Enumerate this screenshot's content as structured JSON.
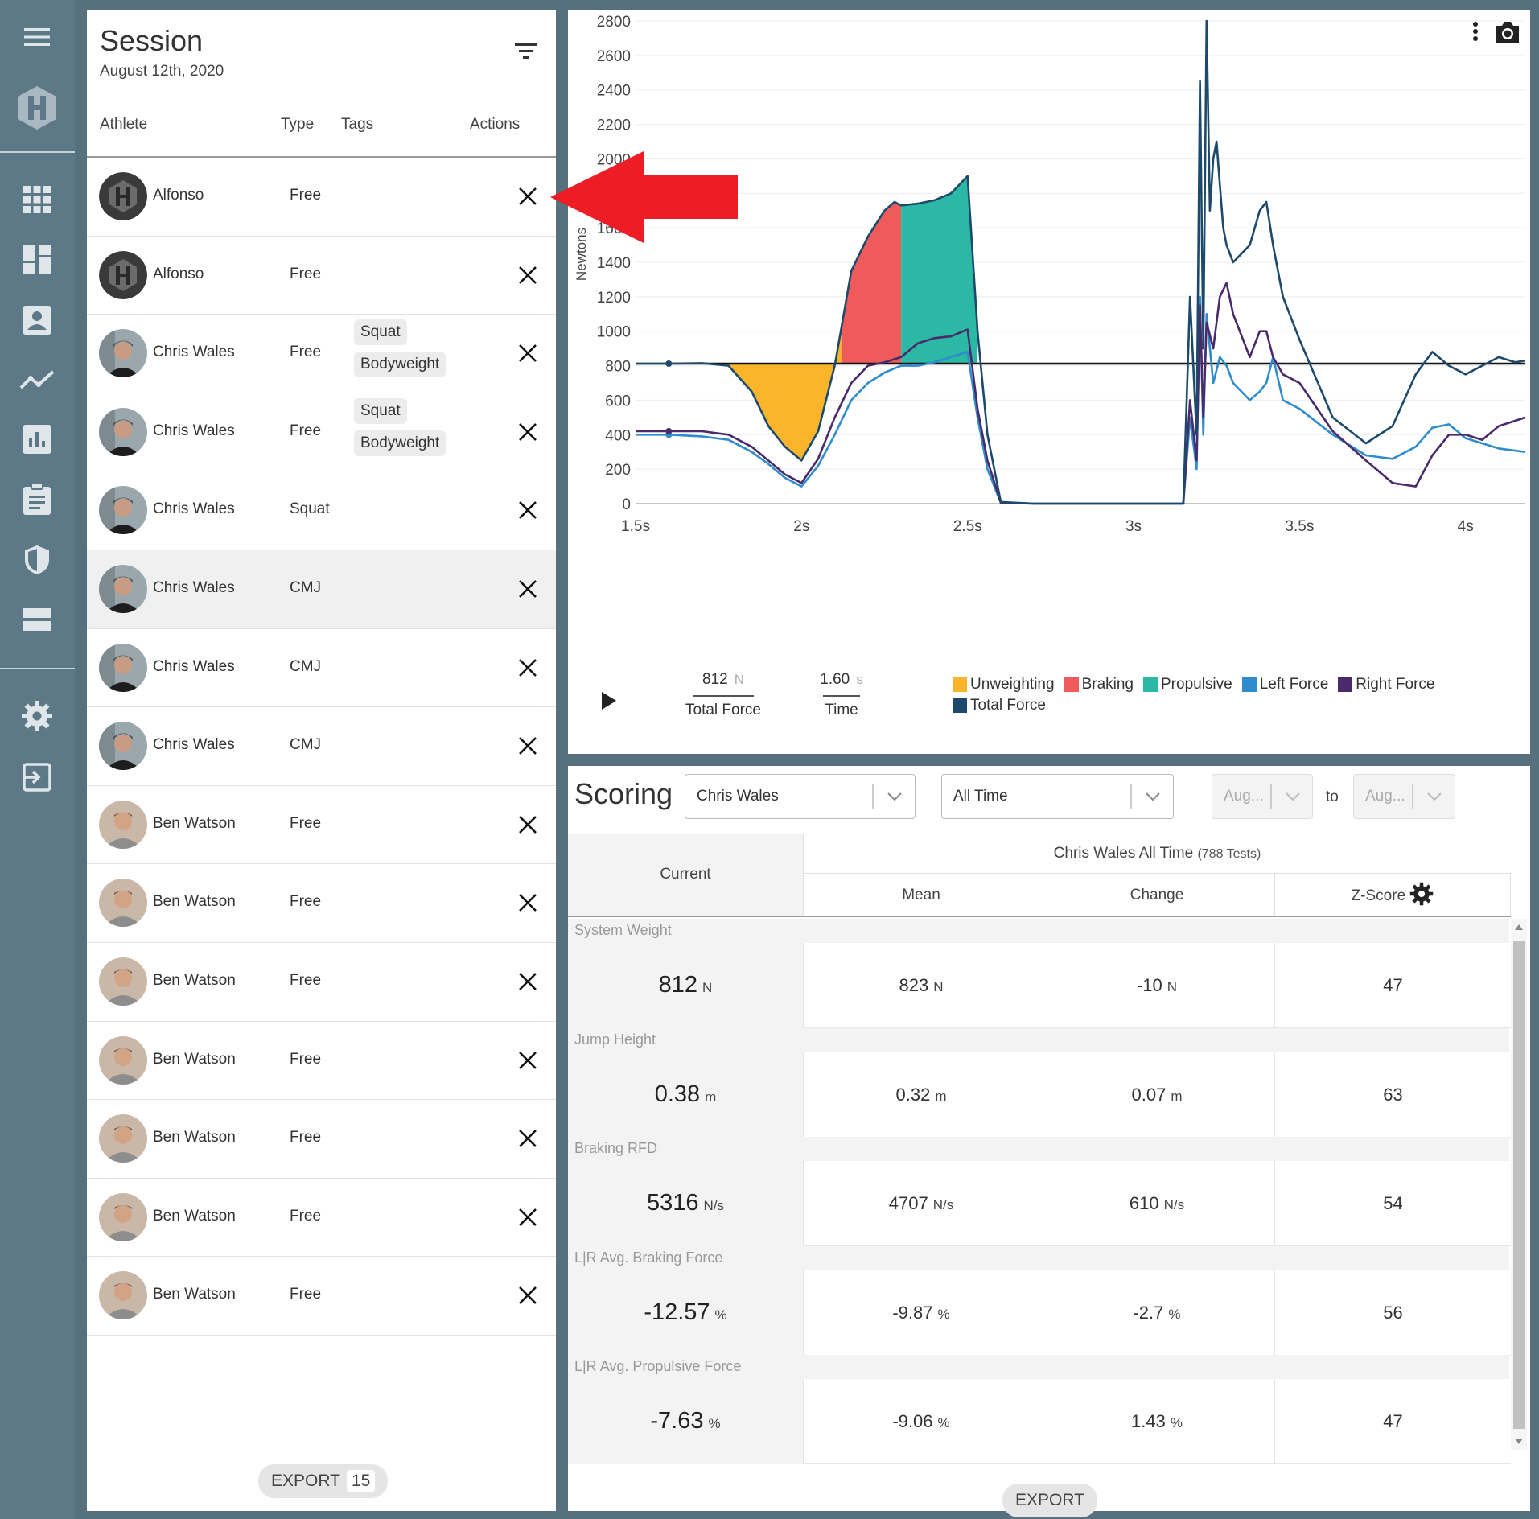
{
  "nav": {
    "icons": [
      "menu-icon",
      "logo-icon",
      "apps-grid-icon",
      "dashboard-icon",
      "athlete-icon",
      "trend-icon",
      "bar-chart-icon",
      "clipboard-icon",
      "shield-icon",
      "storage-icon",
      "settings-icon",
      "logout-icon"
    ]
  },
  "session": {
    "title": "Session",
    "date": "August 12th, 2020",
    "columns": {
      "athlete": "Athlete",
      "type": "Type",
      "tags": "Tags",
      "actions": "Actions"
    },
    "rows": [
      {
        "name": "Alfonso",
        "type": "Free",
        "tags": [],
        "avatar": "logo"
      },
      {
        "name": "Alfonso",
        "type": "Free",
        "tags": [],
        "avatar": "logo"
      },
      {
        "name": "Chris Wales",
        "type": "Free",
        "tags": [
          "Squat",
          "Bodyweight"
        ],
        "avatar": "chris"
      },
      {
        "name": "Chris Wales",
        "type": "Free",
        "tags": [
          "Squat",
          "Bodyweight"
        ],
        "avatar": "chris"
      },
      {
        "name": "Chris Wales",
        "type": "Squat",
        "tags": [],
        "avatar": "chris"
      },
      {
        "name": "Chris Wales",
        "type": "CMJ",
        "tags": [],
        "avatar": "chris",
        "selected": true
      },
      {
        "name": "Chris Wales",
        "type": "CMJ",
        "tags": [],
        "avatar": "chris"
      },
      {
        "name": "Chris Wales",
        "type": "CMJ",
        "tags": [],
        "avatar": "chris"
      },
      {
        "name": "Ben Watson",
        "type": "Free",
        "tags": [],
        "avatar": "ben"
      },
      {
        "name": "Ben Watson",
        "type": "Free",
        "tags": [],
        "avatar": "ben"
      },
      {
        "name": "Ben Watson",
        "type": "Free",
        "tags": [],
        "avatar": "ben"
      },
      {
        "name": "Ben Watson",
        "type": "Free",
        "tags": [],
        "avatar": "ben"
      },
      {
        "name": "Ben Watson",
        "type": "Free",
        "tags": [],
        "avatar": "ben"
      },
      {
        "name": "Ben Watson",
        "type": "Free",
        "tags": [],
        "avatar": "ben"
      },
      {
        "name": "Ben Watson",
        "type": "Free",
        "tags": [],
        "avatar": "ben"
      }
    ],
    "export_label": "EXPORT",
    "export_count": "15"
  },
  "chart_data": {
    "type": "line",
    "title": "",
    "ylabel": "Newtons",
    "xlabel": "",
    "xlim": [
      1.5,
      4.18
    ],
    "ylim": [
      0,
      2800
    ],
    "y_ticks": [
      0,
      200,
      400,
      600,
      800,
      1000,
      1200,
      1400,
      1600,
      1800,
      2000,
      2200,
      2400,
      2600,
      2800
    ],
    "x_ticks": [
      {
        "v": 1.5,
        "label": "1.5s"
      },
      {
        "v": 2.0,
        "label": "2s"
      },
      {
        "v": 2.5,
        "label": "2.5s"
      },
      {
        "v": 3.0,
        "label": "3s"
      },
      {
        "v": 3.5,
        "label": "3.5s"
      },
      {
        "v": 4.0,
        "label": "4s"
      }
    ],
    "baseline": 812,
    "phases": [
      {
        "name": "Unweighting",
        "color": "#fbb52b",
        "x": [
          1.78,
          2.12
        ]
      },
      {
        "name": "Braking",
        "color": "#ef5b5b",
        "x": [
          2.12,
          2.3
        ]
      },
      {
        "name": "Propulsive",
        "color": "#2bb9a5",
        "x": [
          2.3,
          2.53
        ]
      }
    ],
    "series": [
      {
        "name": "Total Force",
        "color": "#1d4a6b",
        "x": [
          1.5,
          1.6,
          1.7,
          1.78,
          1.85,
          1.9,
          1.95,
          2.0,
          2.05,
          2.1,
          2.15,
          2.2,
          2.25,
          2.28,
          2.3,
          2.35,
          2.4,
          2.45,
          2.5,
          2.53,
          2.56,
          2.6,
          2.7,
          2.8,
          2.9,
          3.0,
          3.1,
          3.15,
          3.17,
          3.19,
          3.2,
          3.21,
          3.22,
          3.23,
          3.24,
          3.25,
          3.26,
          3.27,
          3.28,
          3.3,
          3.35,
          3.38,
          3.4,
          3.42,
          3.45,
          3.5,
          3.6,
          3.7,
          3.78,
          3.85,
          3.9,
          3.95,
          4.0,
          4.05,
          4.1,
          4.15,
          4.18
        ],
        "y": [
          812,
          812,
          815,
          800,
          650,
          450,
          330,
          250,
          420,
          800,
          1350,
          1550,
          1700,
          1750,
          1730,
          1740,
          1760,
          1800,
          1900,
          1000,
          400,
          10,
          0,
          0,
          0,
          0,
          0,
          0,
          1200,
          400,
          2450,
          900,
          2800,
          1700,
          2000,
          2100,
          1850,
          1600,
          1500,
          1400,
          1500,
          1700,
          1750,
          1500,
          1200,
          950,
          500,
          350,
          450,
          750,
          880,
          800,
          750,
          800,
          850,
          820,
          830
        ]
      },
      {
        "name": "Left Force",
        "color": "#2f8ccc",
        "x": [
          1.5,
          1.6,
          1.7,
          1.78,
          1.85,
          1.9,
          1.95,
          2.0,
          2.05,
          2.1,
          2.15,
          2.2,
          2.25,
          2.3,
          2.35,
          2.4,
          2.45,
          2.5,
          2.53,
          2.56,
          2.6,
          2.7,
          2.8,
          2.9,
          3.0,
          3.1,
          3.15,
          3.17,
          3.19,
          3.2,
          3.21,
          3.22,
          3.24,
          3.26,
          3.28,
          3.3,
          3.35,
          3.38,
          3.4,
          3.42,
          3.45,
          3.5,
          3.6,
          3.7,
          3.78,
          3.85,
          3.9,
          3.95,
          4.0,
          4.05,
          4.1,
          4.18
        ],
        "y": [
          400,
          400,
          390,
          370,
          300,
          230,
          150,
          100,
          220,
          400,
          600,
          700,
          760,
          800,
          800,
          820,
          850,
          880,
          500,
          200,
          5,
          0,
          0,
          0,
          0,
          0,
          0,
          500,
          200,
          1200,
          400,
          1100,
          700,
          850,
          800,
          700,
          600,
          650,
          700,
          850,
          600,
          550,
          400,
          280,
          260,
          330,
          440,
          460,
          380,
          350,
          320,
          300
        ]
      },
      {
        "name": "Right Force",
        "color": "#4a2a6b",
        "x": [
          1.5,
          1.6,
          1.7,
          1.78,
          1.85,
          1.9,
          1.95,
          2.0,
          2.05,
          2.1,
          2.15,
          2.2,
          2.25,
          2.3,
          2.35,
          2.4,
          2.45,
          2.5,
          2.53,
          2.56,
          2.6,
          2.7,
          2.8,
          2.9,
          3.0,
          3.1,
          3.15,
          3.17,
          3.19,
          3.2,
          3.21,
          3.22,
          3.24,
          3.26,
          3.28,
          3.3,
          3.35,
          3.38,
          3.4,
          3.42,
          3.45,
          3.5,
          3.6,
          3.7,
          3.78,
          3.85,
          3.9,
          3.95,
          4.0,
          4.05,
          4.1,
          4.18
        ],
        "y": [
          420,
          420,
          420,
          400,
          330,
          250,
          170,
          120,
          260,
          500,
          700,
          800,
          820,
          850,
          930,
          960,
          970,
          1010,
          550,
          250,
          5,
          0,
          0,
          0,
          0,
          0,
          0,
          600,
          250,
          1150,
          500,
          1050,
          900,
          1200,
          1280,
          1100,
          850,
          1000,
          1000,
          850,
          750,
          700,
          420,
          250,
          120,
          100,
          280,
          400,
          400,
          370,
          450,
          500
        ]
      }
    ]
  },
  "chart_readout": {
    "total_force_value": "812",
    "total_force_unit": "N",
    "total_force_label": "Total Force",
    "time_value": "1.60",
    "time_unit": "s",
    "time_label": "Time"
  },
  "legend": [
    {
      "name": "Unweighting",
      "color": "#fbb52b"
    },
    {
      "name": "Braking",
      "color": "#ef5b5b"
    },
    {
      "name": "Propulsive",
      "color": "#2bb9a5"
    },
    {
      "name": "Left Force",
      "color": "#2f8ccc"
    },
    {
      "name": "Right Force",
      "color": "#4a2a6b"
    },
    {
      "name": "Total Force",
      "color": "#1d4a6b"
    }
  ],
  "scoring": {
    "title": "Scoring",
    "athlete_select": "Chris Wales",
    "range_select": "All Time",
    "from_select": "Aug...",
    "to_label": "to",
    "to_select": "Aug...",
    "current_label": "Current",
    "group_label": "Chris Wales All Time",
    "group_count": "(788 Tests)",
    "mean_label": "Mean",
    "change_label": "Change",
    "zscore_label": "Z-Score",
    "metrics": [
      {
        "label": "System Weight",
        "current": "812",
        "current_unit": "N",
        "mean": "823",
        "mean_unit": "N",
        "change": "-10",
        "change_unit": "N",
        "z": "47"
      },
      {
        "label": "Jump Height",
        "current": "0.38",
        "current_unit": "m",
        "mean": "0.32",
        "mean_unit": "m",
        "change": "0.07",
        "change_unit": "m",
        "z": "63"
      },
      {
        "label": "Braking RFD",
        "current": "5316",
        "current_unit": "N/s",
        "mean": "4707",
        "mean_unit": "N/s",
        "change": "610",
        "change_unit": "N/s",
        "z": "54"
      },
      {
        "label": "L|R Avg. Braking Force",
        "current": "-12.57",
        "current_unit": "%",
        "mean": "-9.87",
        "mean_unit": "%",
        "change": "-2.7",
        "change_unit": "%",
        "z": "56"
      },
      {
        "label": "L|R Avg. Propulsive Force",
        "current": "-7.63",
        "current_unit": "%",
        "mean": "-9.06",
        "mean_unit": "%",
        "change": "1.43",
        "change_unit": "%",
        "z": "47"
      }
    ],
    "export_label": "EXPORT"
  },
  "annotation": {
    "arrow_color": "#ee1c25"
  }
}
